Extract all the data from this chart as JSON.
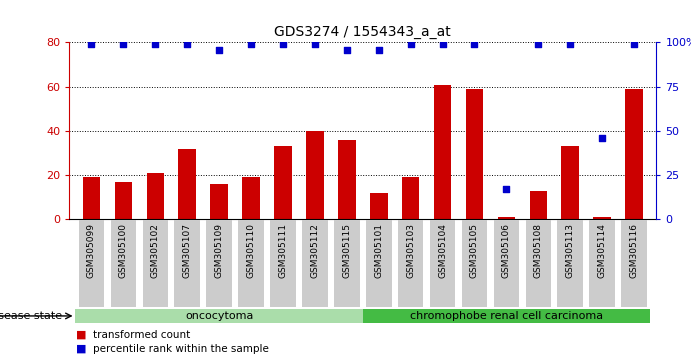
{
  "title": "GDS3274 / 1554343_a_at",
  "samples": [
    "GSM305099",
    "GSM305100",
    "GSM305102",
    "GSM305107",
    "GSM305109",
    "GSM305110",
    "GSM305111",
    "GSM305112",
    "GSM305115",
    "GSM305101",
    "GSM305103",
    "GSM305104",
    "GSM305105",
    "GSM305106",
    "GSM305108",
    "GSM305113",
    "GSM305114",
    "GSM305116"
  ],
  "bar_values": [
    19,
    17,
    21,
    32,
    16,
    19,
    33,
    40,
    36,
    12,
    19,
    61,
    59,
    1,
    13,
    33,
    1,
    59
  ],
  "percentile_values": [
    99,
    99,
    99,
    99,
    96,
    99,
    99,
    99,
    96,
    96,
    99,
    99,
    99,
    17,
    99,
    99,
    46,
    99
  ],
  "oncocytoma_count": 9,
  "chromophobe_count": 9,
  "ylim_left": [
    0,
    80
  ],
  "ylim_right": [
    0,
    100
  ],
  "yticks_left": [
    0,
    20,
    40,
    60,
    80
  ],
  "yticks_right": [
    0,
    25,
    50,
    75,
    100
  ],
  "bar_color": "#cc0000",
  "dot_color": "#0000cc",
  "oncocytoma_color": "#aaddaa",
  "chromophobe_color": "#44bb44",
  "tick_label_color_left": "#cc0000",
  "tick_label_color_right": "#0000cc",
  "grid_color": "#000000",
  "bar_width": 0.55,
  "xtick_bg": "#cccccc"
}
